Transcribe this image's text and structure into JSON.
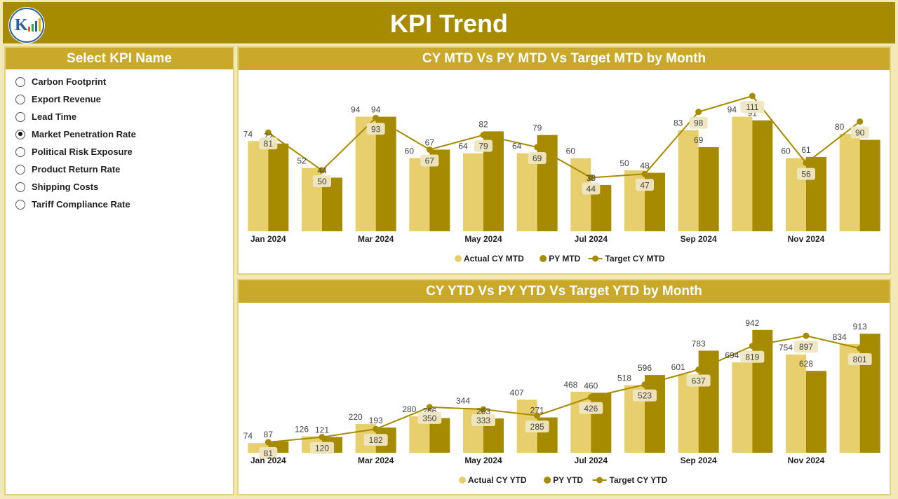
{
  "header": {
    "title": "KPI Trend"
  },
  "sidebar": {
    "title": "Select KPI Name",
    "items": [
      {
        "label": "Carbon Footprint",
        "selected": false
      },
      {
        "label": "Export Revenue",
        "selected": false
      },
      {
        "label": "Lead Time",
        "selected": false
      },
      {
        "label": "Market Penetration Rate",
        "selected": true
      },
      {
        "label": "Political Risk Exposure",
        "selected": false
      },
      {
        "label": "Product Return Rate",
        "selected": false
      },
      {
        "label": "Shipping Costs",
        "selected": false
      },
      {
        "label": "Tariff Compliance Rate",
        "selected": false
      }
    ]
  },
  "colors": {
    "header": "#a68a00",
    "panel_head": "#c9a82a",
    "actual": "#e8cf6d",
    "py": "#a68a00",
    "target": "#a68a00"
  },
  "chart_data": [
    {
      "type": "bar",
      "title": "CY MTD Vs PY MTD Vs Target MTD by Month",
      "categories": [
        "Jan 2024",
        "Feb 2024",
        "Mar 2024",
        "Apr 2024",
        "May 2024",
        "Jun 2024",
        "Jul 2024",
        "Aug 2024",
        "Sep 2024",
        "Oct 2024",
        "Nov 2024",
        "Dec 2024"
      ],
      "tick_labels": [
        "Jan 2024",
        "",
        "Mar 2024",
        "",
        "May 2024",
        "",
        "Jul 2024",
        "",
        "Sep 2024",
        "",
        "Nov 2024",
        ""
      ],
      "ylim": [
        0,
        115
      ],
      "series": [
        {
          "name": "Actual CY MTD",
          "kind": "bar",
          "values": [
            74,
            52,
            94,
            60,
            64,
            64,
            60,
            50,
            83,
            94,
            60,
            80
          ]
        },
        {
          "name": "PY MTD",
          "kind": "bar",
          "values": [
            72,
            44,
            94,
            67,
            82,
            79,
            38,
            48,
            69,
            91,
            61,
            75
          ]
        },
        {
          "name": "Target CY MTD",
          "kind": "line",
          "values": [
            81,
            50,
            93,
            67,
            79,
            69,
            44,
            47,
            98,
            111,
            56,
            90
          ]
        }
      ],
      "legend": "bottom-center"
    },
    {
      "type": "bar",
      "title": "CY YTD Vs PY YTD Vs Target YTD by Month",
      "categories": [
        "Jan 2024",
        "Feb 2024",
        "Mar 2024",
        "Apr 2024",
        "May 2024",
        "Jun 2024",
        "Jul 2024",
        "Aug 2024",
        "Sep 2024",
        "Oct 2024",
        "Nov 2024",
        "Dec 2024"
      ],
      "tick_labels": [
        "Jan 2024",
        "",
        "Mar 2024",
        "",
        "May 2024",
        "",
        "Jul 2024",
        "",
        "Sep 2024",
        "",
        "Nov 2024",
        ""
      ],
      "ylim": [
        0,
        1000
      ],
      "series": [
        {
          "name": "Actual CY YTD",
          "kind": "bar",
          "values": [
            74,
            126,
            220,
            280,
            344,
            407,
            468,
            518,
            601,
            694,
            754,
            834
          ]
        },
        {
          "name": "PY YTD",
          "kind": "bar",
          "values": [
            87,
            121,
            193,
            266,
            263,
            271,
            460,
            596,
            783,
            942,
            628,
            913
          ]
        },
        {
          "name": "Target CY YTD",
          "kind": "line",
          "values": [
            81,
            120,
            182,
            350,
            333,
            285,
            426,
            523,
            637,
            819,
            897,
            801
          ]
        }
      ],
      "legend": "bottom-center"
    }
  ]
}
